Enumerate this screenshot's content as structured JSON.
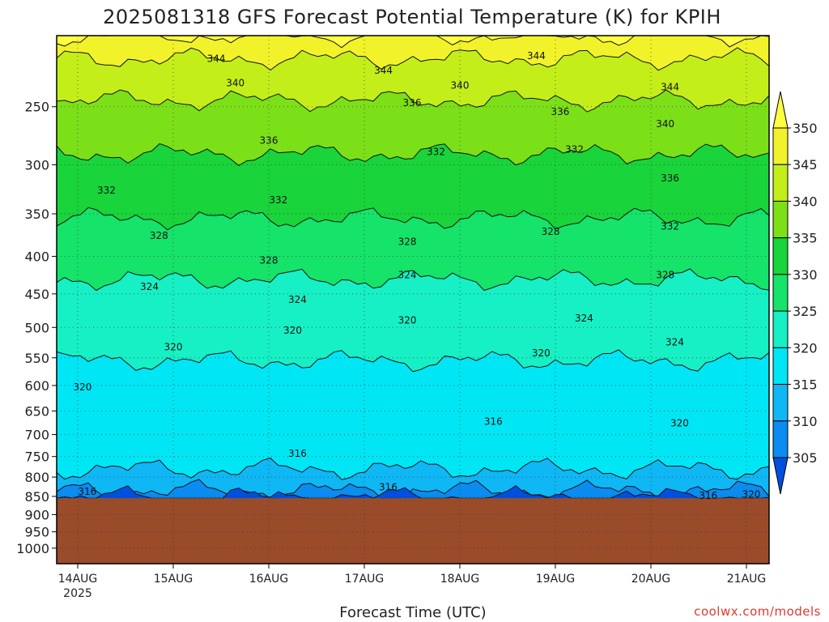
{
  "chart_data": {
    "type": "heatmap",
    "title": "2025081318 GFS Forecast Potential Temperature (K) for KPIH",
    "xlabel": "Forecast Time (UTC)",
    "ylabel": "",
    "x_ticks": [
      "14AUG",
      "15AUG",
      "16AUG",
      "17AUG",
      "18AUG",
      "19AUG",
      "20AUG",
      "21AUG"
    ],
    "x_year_label": "2025",
    "y_ticks": [
      250,
      300,
      350,
      400,
      450,
      500,
      550,
      600,
      650,
      700,
      750,
      800,
      850,
      900,
      950,
      1000
    ],
    "ylim": [
      200,
      1050
    ],
    "y_scale": "log",
    "ground_level": 855,
    "colorbar": {
      "levels": [
        305,
        310,
        315,
        320,
        325,
        330,
        335,
        340,
        345,
        350
      ],
      "colors": [
        "#0050e0",
        "#0a8cf0",
        "#0fb7f5",
        "#00e6f5",
        "#16f0c4",
        "#15e36a",
        "#19d43b",
        "#7ce019",
        "#c4ee1a",
        "#f2f22a",
        "#ffff40"
      ]
    },
    "bands": [
      {
        "value": 305,
        "pressure_top": 852,
        "label": ""
      },
      {
        "value": 310,
        "pressure_top": 835,
        "label": ""
      },
      {
        "value": 315,
        "pressure_top": 780,
        "label": ""
      },
      {
        "value": 320,
        "pressure_top": 555,
        "label": "320"
      },
      {
        "value": 325,
        "pressure_top": 430,
        "label": "324"
      },
      {
        "value": 330,
        "pressure_top": 355,
        "label": "328"
      },
      {
        "value": 335,
        "pressure_top": 290,
        "label": "332"
      },
      {
        "value": 340,
        "pressure_top": 245,
        "label": "336"
      },
      {
        "value": 345,
        "pressure_top": 215,
        "label": "340"
      },
      {
        "value": 350,
        "pressure_top": 200,
        "label": "344"
      }
    ],
    "contour_labels": [
      {
        "text": "344",
        "day": 1.45,
        "p": 215
      },
      {
        "text": "344",
        "day": 3.2,
        "p": 223
      },
      {
        "text": "344",
        "day": 4.8,
        "p": 213
      },
      {
        "text": "344",
        "day": 6.2,
        "p": 235
      },
      {
        "text": "340",
        "day": 1.65,
        "p": 232
      },
      {
        "text": "340",
        "day": 4.0,
        "p": 234
      },
      {
        "text": "340",
        "day": 6.15,
        "p": 264
      },
      {
        "text": "336",
        "day": 2.0,
        "p": 278
      },
      {
        "text": "336",
        "day": 3.5,
        "p": 247
      },
      {
        "text": "336",
        "day": 5.05,
        "p": 254
      },
      {
        "text": "336",
        "day": 6.2,
        "p": 313
      },
      {
        "text": "332",
        "day": 0.3,
        "p": 325
      },
      {
        "text": "332",
        "day": 2.1,
        "p": 335
      },
      {
        "text": "332",
        "day": 3.75,
        "p": 288
      },
      {
        "text": "332",
        "day": 5.2,
        "p": 286
      },
      {
        "text": "332",
        "day": 6.2,
        "p": 364
      },
      {
        "text": "328",
        "day": 0.85,
        "p": 375
      },
      {
        "text": "328",
        "day": 2.0,
        "p": 405
      },
      {
        "text": "328",
        "day": 3.45,
        "p": 382
      },
      {
        "text": "328",
        "day": 4.95,
        "p": 370
      },
      {
        "text": "328",
        "day": 6.15,
        "p": 424
      },
      {
        "text": "324",
        "day": 0.75,
        "p": 440
      },
      {
        "text": "324",
        "day": 2.3,
        "p": 458
      },
      {
        "text": "324",
        "day": 3.45,
        "p": 424
      },
      {
        "text": "324",
        "day": 5.3,
        "p": 486
      },
      {
        "text": "324",
        "day": 6.25,
        "p": 524
      },
      {
        "text": "320",
        "day": 0.05,
        "p": 603
      },
      {
        "text": "320",
        "day": 1.0,
        "p": 532
      },
      {
        "text": "320",
        "day": 2.25,
        "p": 505
      },
      {
        "text": "320",
        "day": 3.45,
        "p": 489
      },
      {
        "text": "320",
        "day": 4.85,
        "p": 542
      },
      {
        "text": "320",
        "day": 6.3,
        "p": 675
      },
      {
        "text": "320",
        "day": 7.05,
        "p": 845
      },
      {
        "text": "316",
        "day": 0.1,
        "p": 837
      },
      {
        "text": "316",
        "day": 2.3,
        "p": 743
      },
      {
        "text": "316",
        "day": 3.25,
        "p": 826
      },
      {
        "text": "316",
        "day": 4.35,
        "p": 672
      },
      {
        "text": "316",
        "day": 6.6,
        "p": 848
      }
    ],
    "grid": true,
    "legend": "right"
  },
  "footer": {
    "credit": "coolwx.com/models"
  }
}
